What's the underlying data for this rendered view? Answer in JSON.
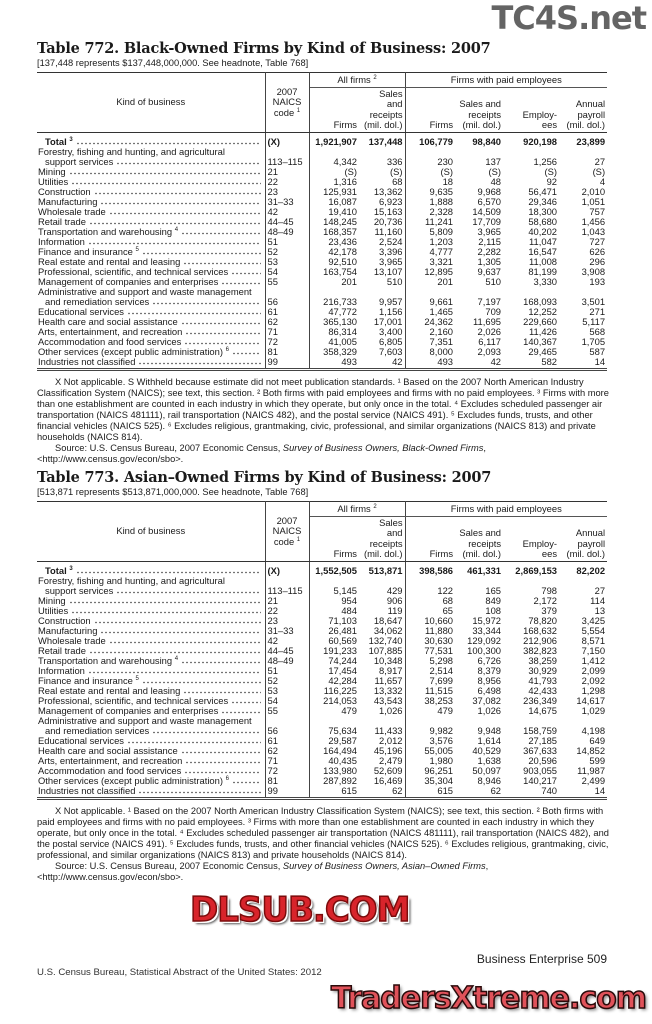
{
  "watermarks": {
    "top": "TC4S.net",
    "middle": "DLSUB.COM",
    "bottom": "TradersXtreme.com"
  },
  "header_labels": {
    "kind": "Kind of business",
    "naics": "2007 NAICS code",
    "naics_sup": "1",
    "all_firms": "All firms",
    "all_firms_sup": "2",
    "paid": "Firms with paid employees",
    "firms": "Firms",
    "sales": "Sales and receipts (mil. dol.)",
    "employees": "Employ- ees",
    "payroll": "Annual payroll (mil. dol.)"
  },
  "tables": [
    {
      "title": "Table 772. Black-Owned Firms by Kind of Business: 2007",
      "headnote": "[137,448 represents $137,448,000,000. See headnote, Table 768]",
      "rows": [
        {
          "label": "Total",
          "sup": "3",
          "code": "(X)",
          "values": [
            "1,921,907",
            "137,448",
            "106,779",
            "98,840",
            "920,198",
            "23,899"
          ],
          "total": true
        },
        {
          "label_pre": "Forestry, fishing and hunting, and agricultural",
          "label": "support services",
          "code": "113–115",
          "values": [
            "4,342",
            "336",
            "230",
            "137",
            "1,256",
            "27"
          ]
        },
        {
          "label": "Mining",
          "code": "21",
          "values": [
            "(S)",
            "(S)",
            "(S)",
            "(S)",
            "(S)",
            "(S)"
          ]
        },
        {
          "label": "Utilities",
          "code": "22",
          "values": [
            "1,316",
            "68",
            "18",
            "48",
            "92",
            "4"
          ]
        },
        {
          "label": "Construction",
          "code": "23",
          "values": [
            "125,931",
            "13,362",
            "9,635",
            "9,968",
            "56,471",
            "2,010"
          ]
        },
        {
          "label": "Manufacturing",
          "code": "31–33",
          "values": [
            "16,087",
            "6,923",
            "1,888",
            "6,570",
            "29,346",
            "1,051"
          ]
        },
        {
          "label": "Wholesale trade",
          "code": "42",
          "values": [
            "19,410",
            "15,163",
            "2,328",
            "14,509",
            "18,300",
            "757"
          ]
        },
        {
          "label": "Retail trade",
          "code": "44–45",
          "values": [
            "148,245",
            "20,736",
            "11,241",
            "17,709",
            "58,680",
            "1,456"
          ]
        },
        {
          "label": "Transportation and warehousing",
          "sup": "4",
          "code": "48–49",
          "values": [
            "168,357",
            "11,160",
            "5,809",
            "3,965",
            "40,202",
            "1,043"
          ]
        },
        {
          "label": "Information",
          "code": "51",
          "values": [
            "23,436",
            "2,524",
            "1,203",
            "2,115",
            "11,047",
            "727"
          ]
        },
        {
          "label": "Finance and insurance",
          "sup": "5",
          "code": "52",
          "values": [
            "42,178",
            "3,396",
            "4,777",
            "2,282",
            "16,547",
            "626"
          ]
        },
        {
          "label": "Real estate and rental and leasing",
          "code": "53",
          "values": [
            "92,510",
            "3,965",
            "3,321",
            "1,305",
            "11,008",
            "296"
          ]
        },
        {
          "label": "Professional, scientific, and technical services",
          "code": "54",
          "values": [
            "163,754",
            "13,107",
            "12,895",
            "9,637",
            "81,199",
            "3,908"
          ]
        },
        {
          "label": "Management of companies and enterprises",
          "code": "55",
          "values": [
            "201",
            "510",
            "201",
            "510",
            "3,330",
            "193"
          ]
        },
        {
          "label_pre": "Administrative and support and waste management",
          "label": "and remediation services",
          "code": "56",
          "values": [
            "216,733",
            "9,957",
            "9,661",
            "7,197",
            "168,093",
            "3,501"
          ]
        },
        {
          "label": "Educational services",
          "code": "61",
          "values": [
            "47,772",
            "1,156",
            "1,465",
            "709",
            "12,252",
            "271"
          ]
        },
        {
          "label": "Health care and social assistance",
          "code": "62",
          "values": [
            "365,130",
            "17,001",
            "24,362",
            "11,695",
            "229,660",
            "5,117"
          ]
        },
        {
          "label": "Arts, entertainment, and recreation",
          "code": "71",
          "values": [
            "86,314",
            "3,400",
            "2,160",
            "2,026",
            "11,426",
            "568"
          ]
        },
        {
          "label": "Accommodation and food services",
          "code": "72",
          "values": [
            "41,005",
            "6,805",
            "7,351",
            "6,117",
            "140,367",
            "1,705"
          ]
        },
        {
          "label": "Other services (except public administration)",
          "sup": "6",
          "code": "81",
          "values": [
            "358,329",
            "7,603",
            "8,000",
            "2,093",
            "29,465",
            "587"
          ]
        },
        {
          "label": "Industries not classified",
          "code": "99",
          "values": [
            "493",
            "42",
            "493",
            "42",
            "582",
            "14"
          ]
        }
      ],
      "notes": "X Not applicable. S Withheld because estimate did not meet publication standards. ¹ Based on the 2007 North American Industry Classification System (NAICS); see text, this section. ² Both firms with paid employees and firms with no paid employees. ³ Firms with more than one establishment are counted in each industry in which they operate, but only once in the total. ⁴ Excludes scheduled passenger air transportation (NAICS 481111), rail transportation (NAICS 482), and the postal service (NAICS 491). ⁵ Excludes funds, trusts, and other financial vehicles (NAICS 525). ⁶ Excludes religious, grantmaking, civic, professional, and similar organizations (NAICS 813) and private households (NAICS 814).",
      "source_pre": "Source: U.S. Census Bureau, 2007 Economic Census, ",
      "source_italic": "Survey of Business Owners, Black-Owned Firms",
      "source_post": ", <http://www.census.gov/econ/sbo>."
    },
    {
      "title": "Table 773. Asian–Owned Firms by Kind of Business: 2007",
      "headnote": "[513,871 represents $513,871,000,000. See headnote, Table 768]",
      "rows": [
        {
          "label": "Total",
          "sup": "3",
          "code": "(X)",
          "values": [
            "1,552,505",
            "513,871",
            "398,586",
            "461,331",
            "2,869,153",
            "82,202"
          ],
          "total": true
        },
        {
          "label_pre": "Forestry, fishing and hunting, and agricultural",
          "label": "support services",
          "code": "113–115",
          "values": [
            "5,145",
            "429",
            "122",
            "165",
            "798",
            "27"
          ]
        },
        {
          "label": "Mining",
          "code": "21",
          "values": [
            "954",
            "906",
            "68",
            "849",
            "2,172",
            "114"
          ]
        },
        {
          "label": "Utilities",
          "code": "22",
          "values": [
            "484",
            "119",
            "65",
            "108",
            "379",
            "13"
          ]
        },
        {
          "label": "Construction",
          "code": "23",
          "values": [
            "71,103",
            "18,647",
            "10,660",
            "15,972",
            "78,820",
            "3,425"
          ]
        },
        {
          "label": "Manufacturing",
          "code": "31–33",
          "values": [
            "26,481",
            "34,062",
            "11,880",
            "33,344",
            "168,632",
            "5,554"
          ]
        },
        {
          "label": "Wholesale trade",
          "code": "42",
          "values": [
            "60,569",
            "132,740",
            "30,630",
            "129,092",
            "212,906",
            "8,571"
          ]
        },
        {
          "label": "Retail trade",
          "code": "44–45",
          "values": [
            "191,233",
            "107,885",
            "77,531",
            "100,300",
            "382,823",
            "7,150"
          ]
        },
        {
          "label": "Transportation and warehousing",
          "sup": "4",
          "code": "48–49",
          "values": [
            "74,244",
            "10,348",
            "5,298",
            "6,726",
            "38,259",
            "1,412"
          ]
        },
        {
          "label": "Information",
          "code": "51",
          "values": [
            "17,454",
            "8,917",
            "2,514",
            "8,379",
            "30,929",
            "2,099"
          ]
        },
        {
          "label": "Finance and insurance",
          "sup": "5",
          "code": "52",
          "values": [
            "42,284",
            "11,657",
            "7,699",
            "8,956",
            "41,793",
            "2,092"
          ]
        },
        {
          "label": "Real estate and rental and leasing",
          "code": "53",
          "values": [
            "116,225",
            "13,332",
            "11,515",
            "6,498",
            "42,433",
            "1,298"
          ]
        },
        {
          "label": "Professional, scientific, and technical services",
          "code": "54",
          "values": [
            "214,053",
            "43,543",
            "38,253",
            "37,082",
            "236,349",
            "14,617"
          ]
        },
        {
          "label": "Management of companies and enterprises",
          "code": "55",
          "values": [
            "479",
            "1,026",
            "479",
            "1,026",
            "14,675",
            "1,029"
          ]
        },
        {
          "label_pre": "Administrative and support and waste management",
          "label": "and remediation services",
          "code": "56",
          "values": [
            "75,634",
            "11,433",
            "9,982",
            "9,948",
            "158,759",
            "4,198"
          ]
        },
        {
          "label": "Educational services",
          "code": "61",
          "values": [
            "29,587",
            "2,012",
            "3,576",
            "1,614",
            "27,185",
            "649"
          ]
        },
        {
          "label": "Health care and social assistance",
          "code": "62",
          "values": [
            "164,494",
            "45,196",
            "55,005",
            "40,529",
            "367,633",
            "14,852"
          ]
        },
        {
          "label": "Arts, entertainment, and recreation",
          "code": "71",
          "values": [
            "40,435",
            "2,479",
            "1,980",
            "1,638",
            "20,596",
            "599"
          ]
        },
        {
          "label": "Accommodation and food services",
          "code": "72",
          "values": [
            "133,980",
            "52,609",
            "96,251",
            "50,097",
            "903,055",
            "11,987"
          ]
        },
        {
          "label": "Other services (except public administration)",
          "sup": "6",
          "code": "81",
          "values": [
            "287,892",
            "16,469",
            "35,304",
            "8,946",
            "140,217",
            "2,499"
          ]
        },
        {
          "label": "Industries not classified",
          "code": "99",
          "values": [
            "615",
            "62",
            "615",
            "62",
            "740",
            "14"
          ]
        }
      ],
      "notes": "X Not applicable. ¹ Based on the 2007 North American Industry Classification System (NAICS); see text, this section. ² Both firms with paid employees and firms with no paid employees. ³ Firms with more than one establishment are counted in each industry in which they operate, but only once in the total. ⁴ Excludes scheduled passenger air transportation (NAICS 481111), rail transportation (NAICS 482), and the postal service (NAICS 491). ⁵ Excludes funds, trusts, and other financial vehicles (NAICS 525). ⁶ Excludes religious, grantmaking, civic, professional, and similar organizations (NAICS 813) and private households (NAICS 814).",
      "source_pre": "Source: U.S. Census Bureau, 2007 Economic Census, ",
      "source_italic": "Survey of Business Owners, Asian–Owned Firms",
      "source_post": ", <http://www.census.gov/econ/sbo>."
    }
  ],
  "footer": {
    "left": "U.S. Census Bureau, Statistical Abstract of the United States: 2012",
    "right": "Business Enterprise  509"
  }
}
